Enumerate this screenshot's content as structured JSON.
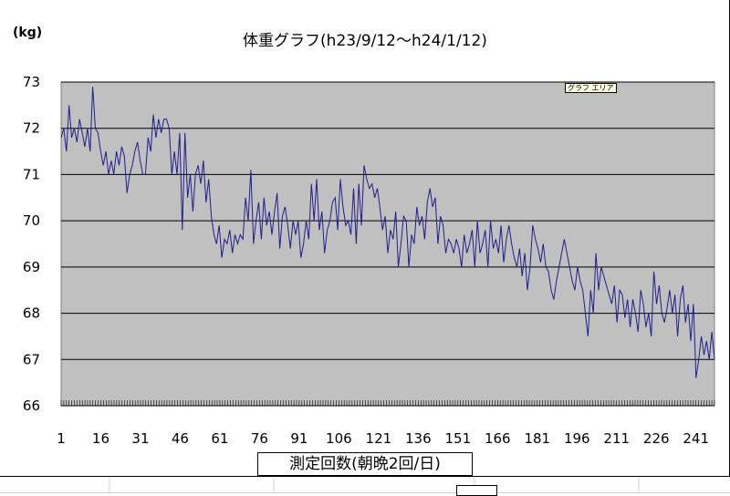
{
  "chart_data": {
    "type": "line",
    "title": "体重グラフ(h23/9/12〜h24/1/12)",
    "ylabel": "(kg)",
    "xlabel": "測定回数(朝晩2回/日)",
    "ylim": [
      66,
      73
    ],
    "y_ticks": [
      66,
      67,
      68,
      69,
      70,
      71,
      72,
      73
    ],
    "x_tick_labels": [
      "1",
      "16",
      "31",
      "46",
      "61",
      "76",
      "91",
      "106",
      "121",
      "136",
      "151",
      "166",
      "181",
      "196",
      "211",
      "226",
      "241"
    ],
    "x_range": [
      1,
      248
    ],
    "grid": true,
    "plot_background": "#c0c0c0",
    "line_color": "#1f1f8a",
    "series": [
      {
        "name": "体重",
        "values": [
          71.8,
          72.0,
          71.5,
          72.5,
          71.8,
          72.0,
          71.7,
          72.2,
          71.9,
          71.6,
          72.0,
          71.5,
          72.9,
          72.0,
          71.9,
          71.5,
          71.2,
          71.5,
          71.0,
          71.3,
          71.0,
          71.5,
          71.2,
          71.6,
          71.4,
          70.6,
          71.0,
          71.2,
          71.5,
          71.7,
          71.3,
          71.0,
          71.0,
          71.8,
          71.5,
          72.3,
          71.8,
          72.2,
          71.9,
          72.2,
          72.2,
          72.0,
          71.0,
          71.5,
          71.0,
          71.9,
          69.8,
          71.9,
          70.5,
          71.0,
          70.2,
          71.0,
          71.2,
          70.8,
          71.3,
          70.4,
          70.9,
          70.1,
          69.7,
          69.5,
          69.9,
          69.2,
          69.6,
          69.5,
          69.8,
          69.3,
          69.7,
          69.5,
          69.7,
          69.6,
          70.5,
          70.0,
          71.1,
          69.5,
          70.0,
          70.4,
          69.6,
          70.5,
          69.9,
          70.2,
          69.7,
          70.2,
          70.6,
          69.4,
          70.1,
          70.3,
          69.9,
          69.4,
          70.0,
          69.7,
          70.0,
          69.2,
          69.5,
          70.0,
          69.6,
          70.8,
          70.0,
          70.9,
          69.8,
          70.2,
          69.3,
          69.8,
          70.0,
          70.4,
          70.5,
          69.8,
          70.9,
          70.3,
          69.9,
          70.0,
          69.7,
          70.7,
          69.5,
          70.8,
          69.9,
          71.2,
          70.9,
          70.7,
          70.8,
          70.5,
          70.7,
          70.3,
          69.8,
          70.1,
          69.3,
          69.8,
          69.6,
          70.2,
          69.0,
          69.5,
          70.1,
          70.0,
          69.0,
          69.7,
          69.5,
          70.3,
          69.9,
          70.1,
          69.6,
          70.4,
          70.7,
          70.3,
          70.5,
          69.5,
          70.1,
          69.9,
          69.3,
          69.6,
          69.5,
          69.3,
          69.6,
          69.4,
          69.0,
          69.7,
          69.3,
          69.5,
          69.8,
          69.0,
          70.0,
          69.3,
          69.5,
          69.8,
          69.0,
          70.0,
          69.4,
          69.6,
          69.3,
          69.9,
          69.1,
          69.6,
          69.9,
          69.5,
          69.2,
          69.0,
          69.4,
          68.8,
          69.3,
          68.5,
          69.0,
          69.9,
          69.6,
          69.4,
          69.1,
          69.5,
          69.0,
          68.9,
          68.5,
          68.3,
          68.7,
          69.0,
          69.3,
          69.6,
          69.3,
          69.0,
          68.7,
          68.5,
          69.0,
          68.7,
          68.5,
          68.0,
          67.5,
          68.5,
          68.0,
          69.3,
          68.5,
          69.0,
          68.8,
          68.6,
          68.4,
          68.2,
          68.6,
          67.8,
          68.5,
          68.4,
          67.9,
          68.3,
          67.7,
          68.3,
          68.0,
          67.6,
          68.5,
          68.2,
          67.7,
          68.0,
          67.5,
          68.9,
          68.2,
          68.6,
          68.0,
          67.8,
          68.1,
          68.5,
          68.0,
          68.4,
          67.5,
          68.3,
          68.6,
          67.8,
          68.2,
          67.4,
          68.2,
          66.6,
          67.0,
          67.5,
          67.1,
          67.4,
          67.0,
          67.6,
          67.0
        ]
      }
    ]
  },
  "tooltip": "グラフ エリア"
}
